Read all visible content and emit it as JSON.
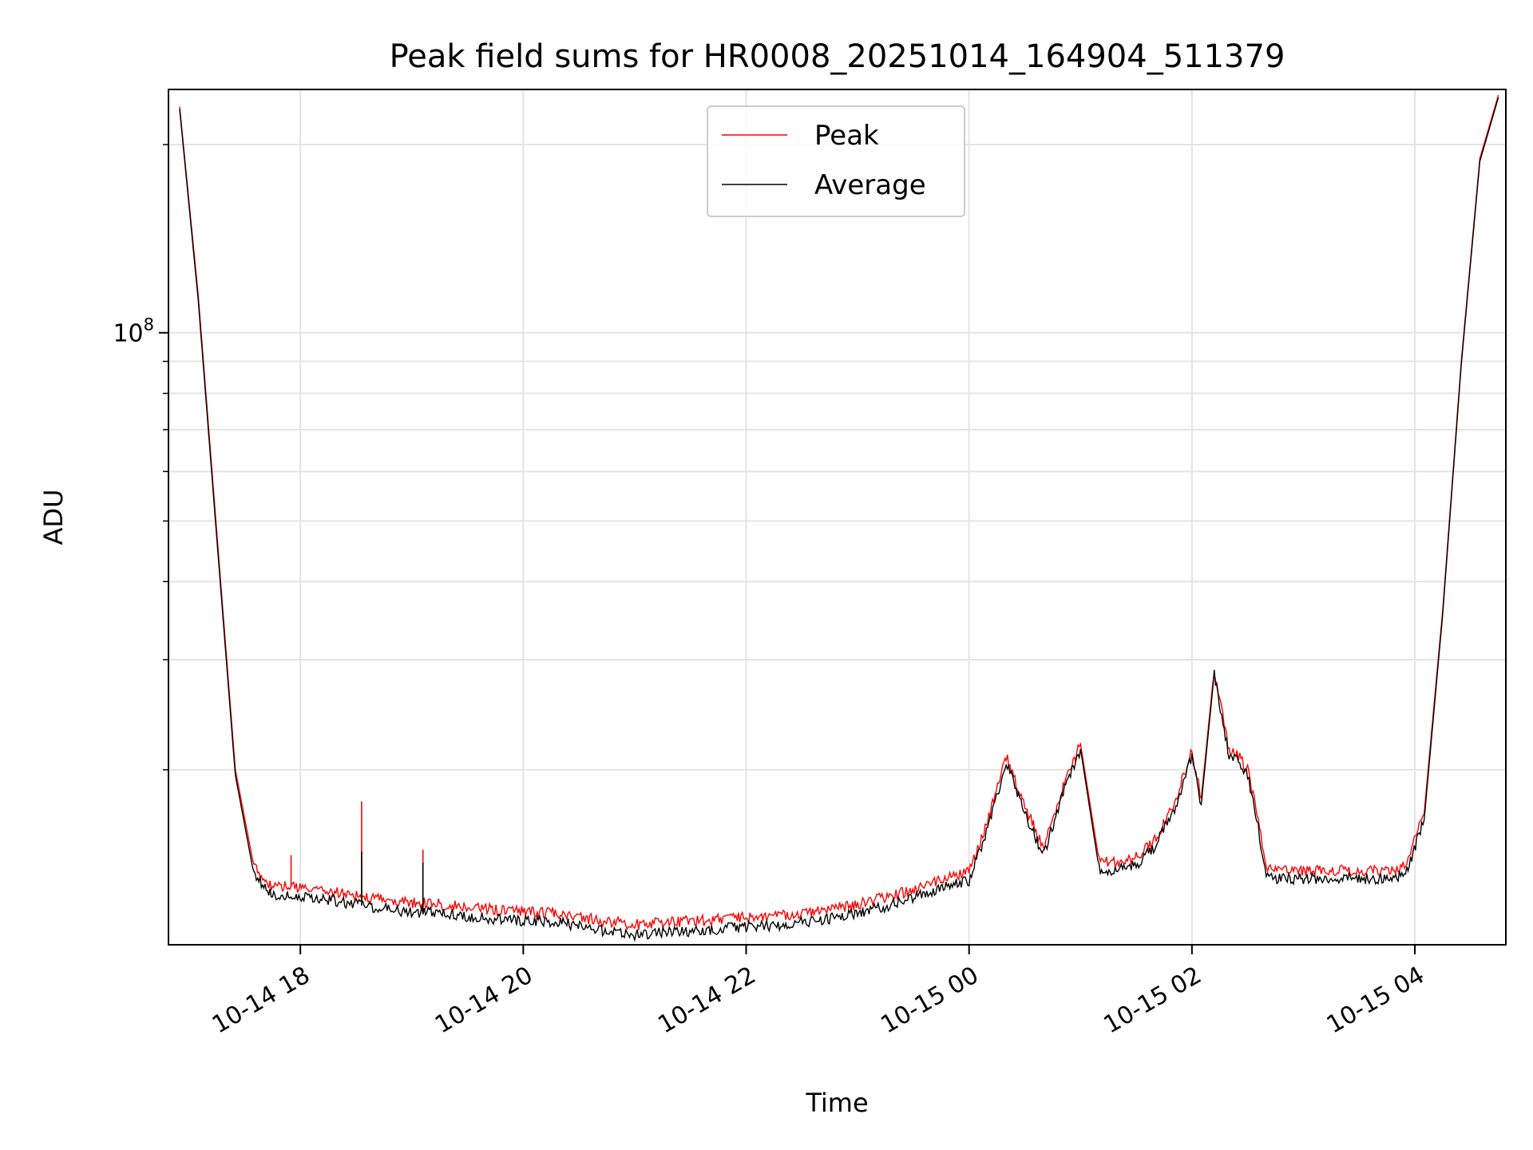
{
  "chart_data": {
    "type": "line",
    "title": "Peak field sums for HR0008_20251014_164904_511379",
    "xlabel": "Time",
    "ylabel": "ADU",
    "y_scale": "log",
    "x_axis": "datetime",
    "xlim": [
      "2025-10-14 16:49",
      "2025-10-15 04:49"
    ],
    "ylim": [
      10500000,
      245000000
    ],
    "x_ticks": [
      {
        "t": "2025-10-14 18:00",
        "label": "10-14 18"
      },
      {
        "t": "2025-10-14 20:00",
        "label": "10-14 20"
      },
      {
        "t": "2025-10-14 22:00",
        "label": "10-14 22"
      },
      {
        "t": "2025-10-15 00:00",
        "label": "10-15 00"
      },
      {
        "t": "2025-10-15 02:00",
        "label": "10-15 02"
      },
      {
        "t": "2025-10-15 04:00",
        "label": "10-15 04"
      }
    ],
    "y_major_ticks": [
      {
        "v": 100000000,
        "base": "10",
        "exp": "8"
      }
    ],
    "y_minor_ticks": [
      20000000,
      30000000,
      40000000,
      50000000,
      60000000,
      70000000,
      80000000,
      90000000,
      200000000
    ],
    "grid": true,
    "legend_position": "top-center",
    "series": [
      {
        "name": "Peak",
        "color": "#ff0000",
        "x": [
          "2025-10-14 16:55",
          "2025-10-14 17:05",
          "2025-10-14 17:15",
          "2025-10-14 17:25",
          "2025-10-14 17:35",
          "2025-10-14 17:45",
          "2025-10-14 17:55",
          "2025-10-14 18:15",
          "2025-10-14 18:35",
          "2025-10-14 18:55",
          "2025-10-14 19:15",
          "2025-10-14 19:35",
          "2025-10-14 19:55",
          "2025-10-14 20:20",
          "2025-10-14 20:40",
          "2025-10-14 21:00",
          "2025-10-14 21:20",
          "2025-10-14 21:40",
          "2025-10-14 22:00",
          "2025-10-14 22:20",
          "2025-10-14 22:40",
          "2025-10-14 23:00",
          "2025-10-14 23:20",
          "2025-10-14 23:40",
          "2025-10-15 00:00",
          "2025-10-15 00:10",
          "2025-10-15 00:20",
          "2025-10-15 00:30",
          "2025-10-15 00:40",
          "2025-10-15 00:50",
          "2025-10-15 01:00",
          "2025-10-15 01:10",
          "2025-10-15 01:20",
          "2025-10-15 01:30",
          "2025-10-15 01:40",
          "2025-10-15 01:50",
          "2025-10-15 02:00",
          "2025-10-15 02:05",
          "2025-10-15 02:12",
          "2025-10-15 02:20",
          "2025-10-15 02:25",
          "2025-10-15 02:30",
          "2025-10-15 02:35",
          "2025-10-15 02:40",
          "2025-10-15 02:45",
          "2025-10-15 02:50",
          "2025-10-15 03:00",
          "2025-10-15 03:15",
          "2025-10-15 03:30",
          "2025-10-15 03:45",
          "2025-10-15 03:55",
          "2025-10-15 04:05",
          "2025-10-15 04:15",
          "2025-10-15 04:25",
          "2025-10-15 04:35",
          "2025-10-15 04:45"
        ],
        "values": [
          230000000,
          115000000,
          48000000,
          20000000,
          14000000,
          13000000,
          13000000,
          12800000,
          12500000,
          12300000,
          12200000,
          12000000,
          11900000,
          11800000,
          11500000,
          11300000,
          11400000,
          11500000,
          11600000,
          11700000,
          11900000,
          12200000,
          12600000,
          13200000,
          13700000,
          16500000,
          21000000,
          17500000,
          15000000,
          18500000,
          22000000,
          14300000,
          14200000,
          14500000,
          15500000,
          17500000,
          21500000,
          18000000,
          29000000,
          21500000,
          21000000,
          20000000,
          17000000,
          14000000,
          13800000,
          13800000,
          13800000,
          13800000,
          13800000,
          13800000,
          14000000,
          17000000,
          36000000,
          90000000,
          190000000,
          240000000
        ],
        "spikes": [
          {
            "t": "2025-10-14 17:55",
            "v": 14600000
          },
          {
            "t": "2025-10-14 18:33",
            "v": 17800000
          },
          {
            "t": "2025-10-14 19:06",
            "v": 14900000
          }
        ]
      },
      {
        "name": "Average",
        "color": "#000000",
        "x": [
          "2025-10-14 16:55",
          "2025-10-14 17:05",
          "2025-10-14 17:15",
          "2025-10-14 17:25",
          "2025-10-14 17:35",
          "2025-10-14 17:45",
          "2025-10-14 17:55",
          "2025-10-14 18:15",
          "2025-10-14 18:35",
          "2025-10-14 18:55",
          "2025-10-14 19:15",
          "2025-10-14 19:35",
          "2025-10-14 19:55",
          "2025-10-14 20:20",
          "2025-10-14 20:40",
          "2025-10-14 21:00",
          "2025-10-14 21:20",
          "2025-10-14 21:40",
          "2025-10-14 22:00",
          "2025-10-14 22:20",
          "2025-10-14 22:40",
          "2025-10-14 23:00",
          "2025-10-14 23:20",
          "2025-10-14 23:40",
          "2025-10-15 00:00",
          "2025-10-15 00:10",
          "2025-10-15 00:20",
          "2025-10-15 00:30",
          "2025-10-15 00:40",
          "2025-10-15 00:50",
          "2025-10-15 01:00",
          "2025-10-15 01:10",
          "2025-10-15 01:20",
          "2025-10-15 01:30",
          "2025-10-15 01:40",
          "2025-10-15 01:50",
          "2025-10-15 02:00",
          "2025-10-15 02:05",
          "2025-10-15 02:12",
          "2025-10-15 02:20",
          "2025-10-15 02:25",
          "2025-10-15 02:30",
          "2025-10-15 02:35",
          "2025-10-15 02:40",
          "2025-10-15 02:45",
          "2025-10-15 02:50",
          "2025-10-15 03:00",
          "2025-10-15 03:15",
          "2025-10-15 03:30",
          "2025-10-15 03:45",
          "2025-10-15 03:55",
          "2025-10-15 04:05",
          "2025-10-15 04:15",
          "2025-10-15 04:25",
          "2025-10-15 04:35",
          "2025-10-15 04:45"
        ],
        "values": [
          228000000,
          113000000,
          47000000,
          19600000,
          13600000,
          12600000,
          12600000,
          12400000,
          12100000,
          11900000,
          11800000,
          11600000,
          11500000,
          11400000,
          11100000,
          10900000,
          11000000,
          11100000,
          11200000,
          11300000,
          11500000,
          11800000,
          12200000,
          12800000,
          13300000,
          16100000,
          20600000,
          17100000,
          14600000,
          18100000,
          21600000,
          13900000,
          13800000,
          14100000,
          15100000,
          17100000,
          21100000,
          17600000,
          28500000,
          21000000,
          20600000,
          19600000,
          16600000,
          13600000,
          13400000,
          13400000,
          13400000,
          13400000,
          13400000,
          13400000,
          13600000,
          16600000,
          35500000,
          89000000,
          188000000,
          238000000
        ],
        "spikes": [
          {
            "t": "2025-10-14 18:33",
            "v": 14800000
          },
          {
            "t": "2025-10-14 19:06",
            "v": 14200000
          }
        ]
      }
    ]
  }
}
